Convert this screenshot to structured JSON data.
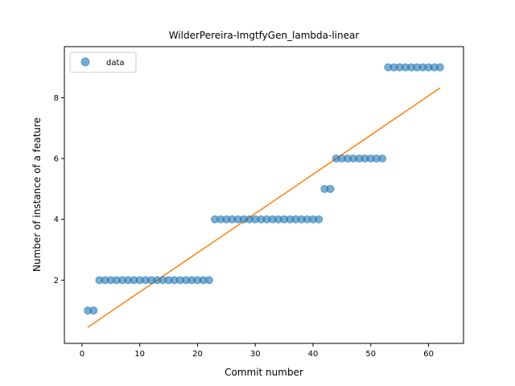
{
  "chart_data": {
    "type": "scatter",
    "title": "WilderPereira-ImgtfyGen_lambda-linear",
    "xlabel": "Commit number",
    "ylabel": "Number of instance of a feature",
    "xlim": [
      -3.05,
      66.05
    ],
    "ylim": [
      -0.08,
      9.68
    ],
    "xticks": [
      0,
      10,
      20,
      30,
      40,
      50,
      60
    ],
    "yticks": [
      2,
      4,
      6,
      8
    ],
    "grid": false,
    "legend": {
      "position": "top-left",
      "entries": [
        "data"
      ]
    },
    "colors": {
      "scatter": "#1f77b4",
      "fit": "#ff7f0e",
      "axis": "#000000"
    },
    "series": [
      {
        "name": "data",
        "kind": "scatter",
        "x": [
          1,
          2,
          3,
          4,
          5,
          6,
          7,
          8,
          9,
          10,
          11,
          12,
          13,
          14,
          15,
          16,
          17,
          18,
          19,
          20,
          21,
          22,
          23,
          24,
          25,
          26,
          27,
          28,
          29,
          30,
          31,
          32,
          33,
          34,
          35,
          36,
          37,
          38,
          39,
          40,
          41,
          42,
          43,
          44,
          45,
          46,
          47,
          48,
          49,
          50,
          51,
          52,
          53,
          54,
          55,
          56,
          57,
          58,
          59,
          60,
          61,
          62
        ],
        "y": [
          1,
          1,
          2,
          2,
          2,
          2,
          2,
          2,
          2,
          2,
          2,
          2,
          2,
          2,
          2,
          2,
          2,
          2,
          2,
          2,
          2,
          2,
          4,
          4,
          4,
          4,
          4,
          4,
          4,
          4,
          4,
          4,
          4,
          4,
          4,
          4,
          4,
          4,
          4,
          4,
          4,
          5,
          5,
          6,
          6,
          6,
          6,
          6,
          6,
          6,
          6,
          6,
          9,
          9,
          9,
          9,
          9,
          9,
          9,
          9,
          9,
          9
        ]
      },
      {
        "kind": "line",
        "x": [
          1,
          62
        ],
        "y": [
          0.45,
          8.32
        ]
      }
    ]
  }
}
